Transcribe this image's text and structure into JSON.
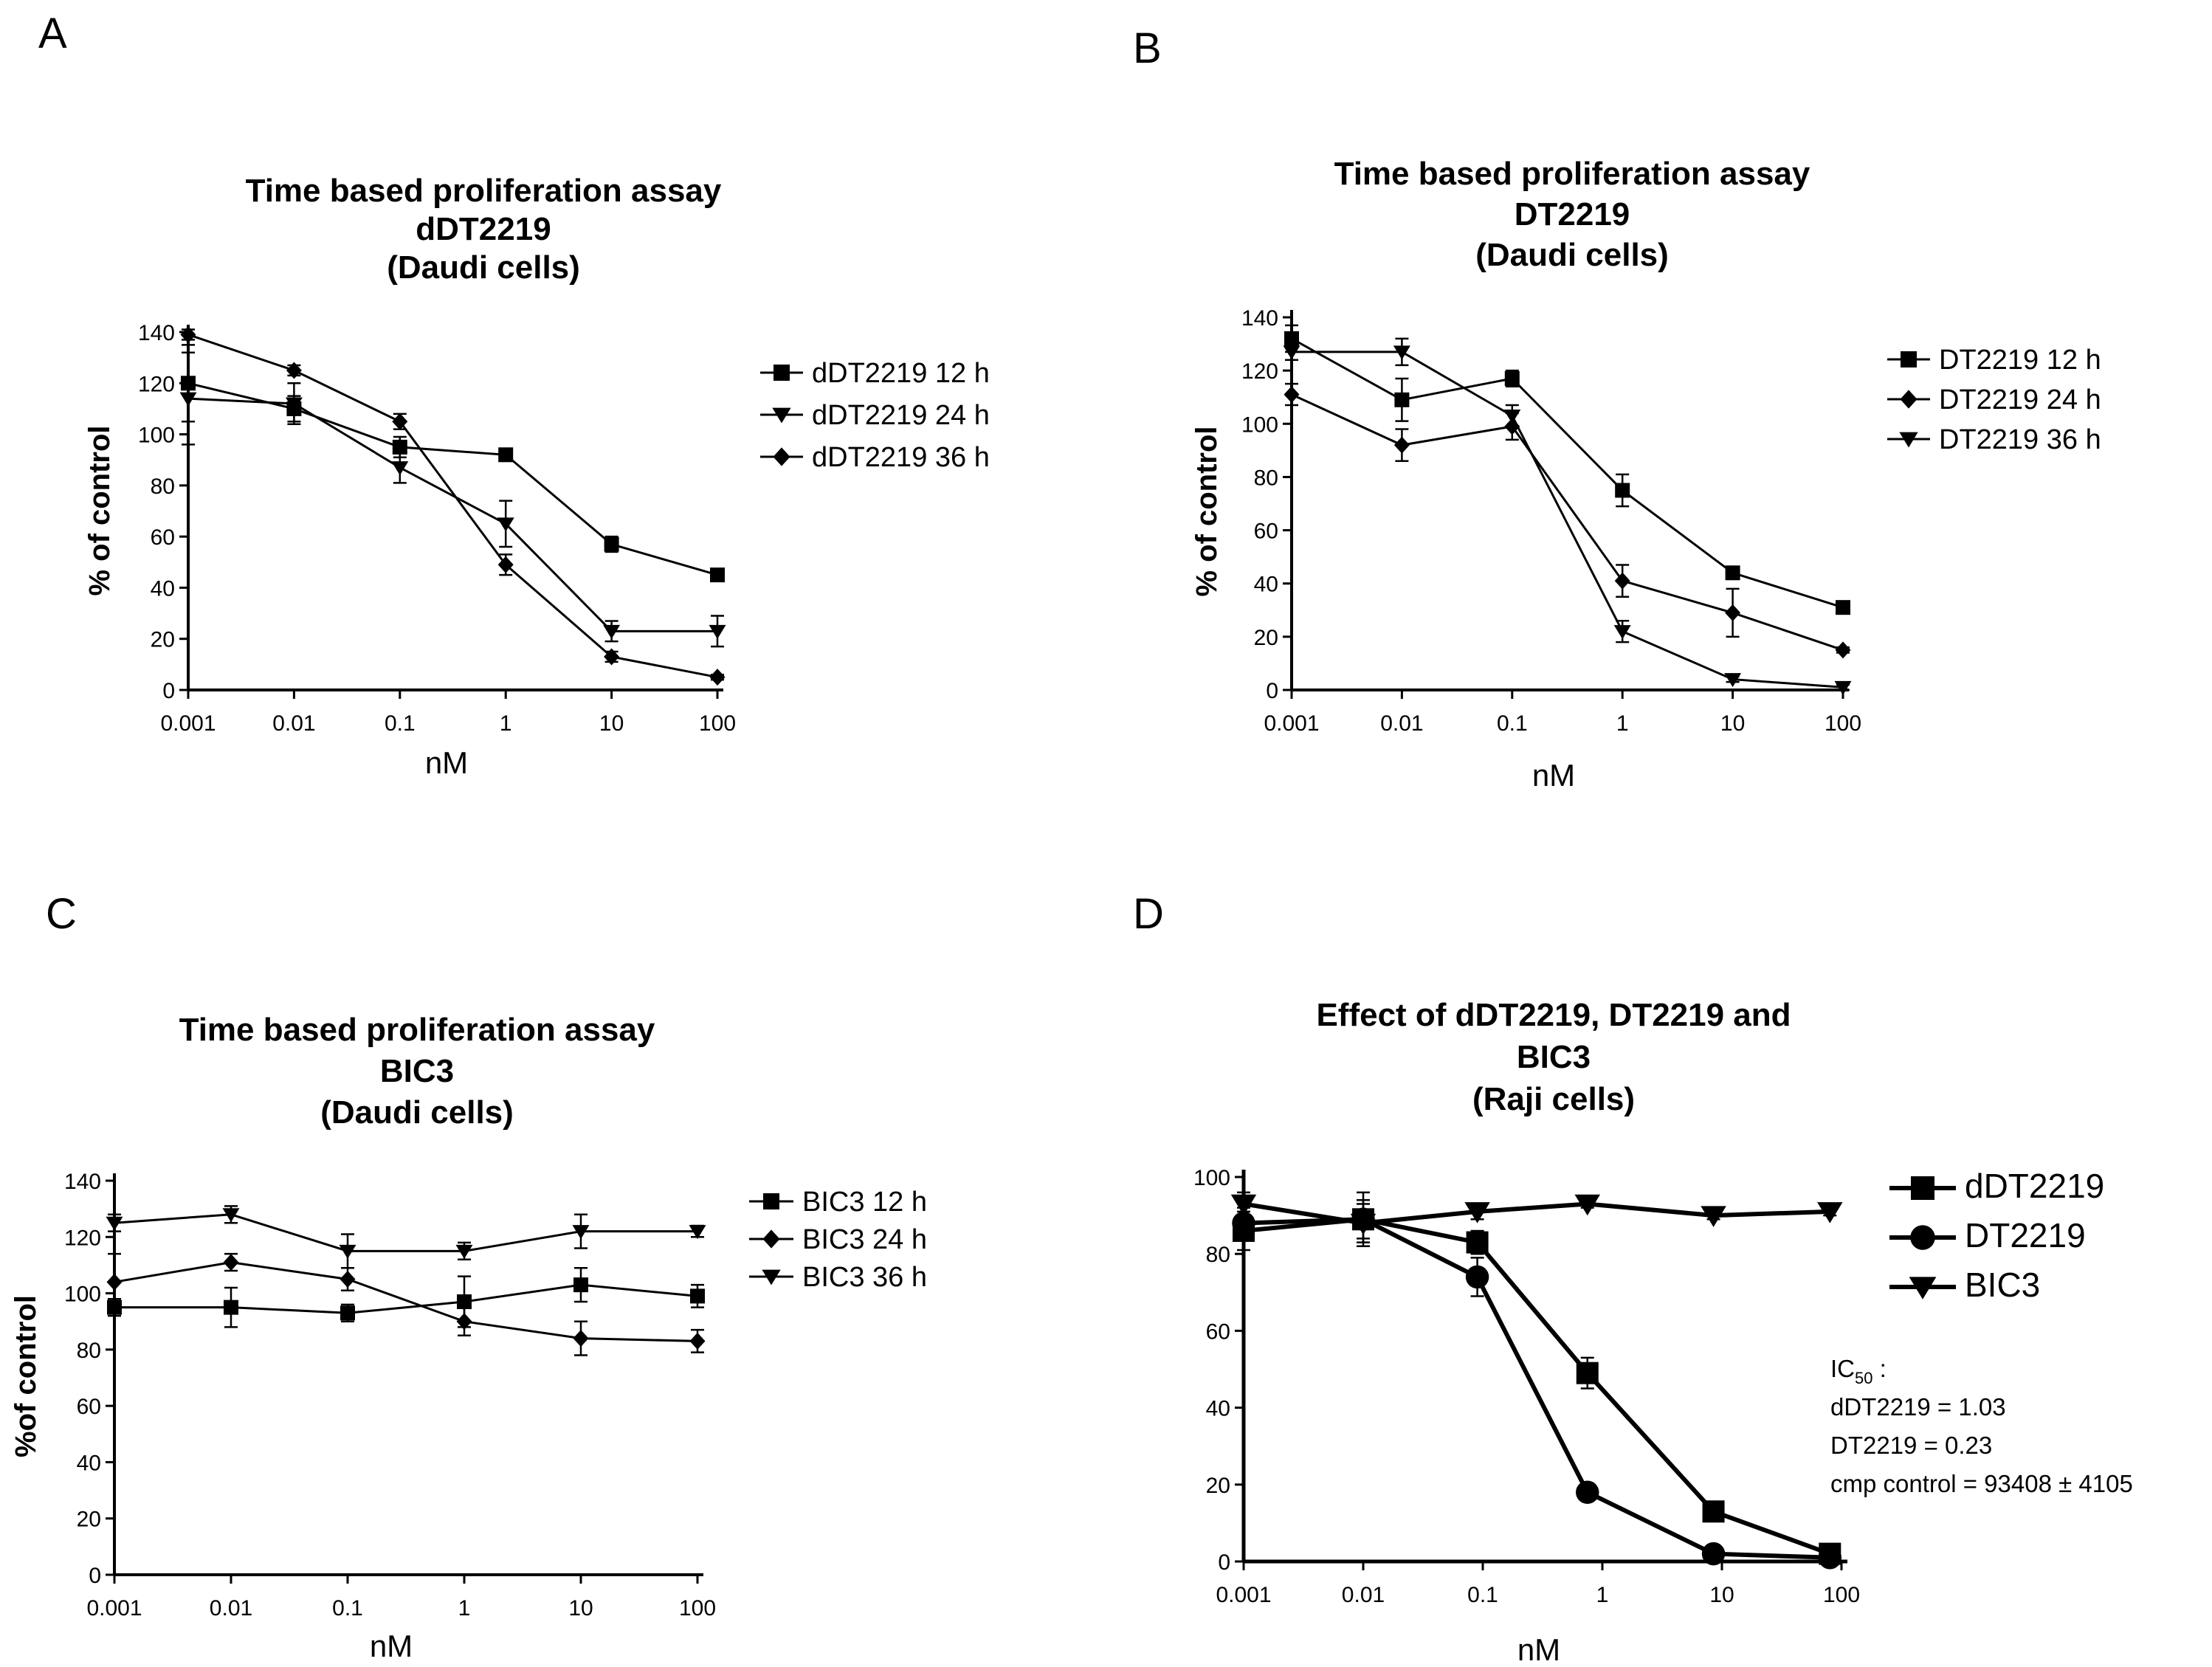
{
  "figure": {
    "panels": [
      {
        "letter": "A",
        "title_lines": [
          "Time based proliferation assay",
          "dDT2219",
          "(Daudi cells)"
        ]
      },
      {
        "letter": "B",
        "title_lines": [
          "Time based proliferation assay",
          "DT2219",
          "(Daudi cells)"
        ]
      },
      {
        "letter": "C",
        "title_lines": [
          "Time based proliferation assay",
          "BIC3",
          "(Daudi cells)"
        ]
      },
      {
        "letter": "D",
        "title_lines": [
          "Effect of dDT2219, DT2219 and",
          "BIC3",
          "(Raji cells)"
        ]
      }
    ],
    "ic50": {
      "label": "IC",
      "label_sub": "50",
      "label_suffix": ":",
      "lines": [
        "dDT2219 = 1.03",
        "DT2219 = 0.23",
        "cmp control = 93408 ± 4105"
      ]
    }
  },
  "chart_data": [
    {
      "type": "line",
      "title": "Time based proliferation assay dDT2219 (Daudi cells)",
      "xlabel": "nM",
      "ylabel": "% of control",
      "xscale": "log",
      "x": [
        0.001,
        0.01,
        0.1,
        1,
        10,
        100
      ],
      "xticks": [
        "0.001",
        "0.01",
        "0.1",
        "1",
        "10",
        "100"
      ],
      "yticks": [
        "0",
        "20",
        "40",
        "60",
        "80",
        "100",
        "120",
        "140"
      ],
      "ylim": [
        0,
        140
      ],
      "legend": "right",
      "series": [
        {
          "name": "dDT2219 12 h",
          "marker": "square",
          "values": [
            120,
            110,
            95,
            92,
            57,
            45
          ],
          "errors": [
            15,
            5,
            4,
            2,
            3,
            2
          ]
        },
        {
          "name": "dDT2219 24 h",
          "marker": "triangle-down",
          "values": [
            114,
            112,
            87,
            65,
            23,
            23
          ],
          "errors": [
            18,
            8,
            6,
            9,
            4,
            6
          ]
        },
        {
          "name": "dDT2219 36 h",
          "marker": "diamond",
          "values": [
            139,
            125,
            105,
            49,
            13,
            5
          ],
          "errors": [
            2,
            2,
            3,
            4,
            2,
            1
          ]
        }
      ]
    },
    {
      "type": "line",
      "title": "Time based proliferation assay DT2219 (Daudi cells)",
      "xlabel": "nM",
      "ylabel": "% of control",
      "xscale": "log",
      "x": [
        0.001,
        0.01,
        0.1,
        1,
        10,
        100
      ],
      "xticks": [
        "0.001",
        "0.01",
        "0.1",
        "1",
        "10",
        "100"
      ],
      "yticks": [
        "0",
        "20",
        "40",
        "60",
        "80",
        "100",
        "120",
        "140"
      ],
      "ylim": [
        0,
        140
      ],
      "legend": "right",
      "series": [
        {
          "name": "DT2219 12 h",
          "marker": "square",
          "values": [
            132,
            109,
            117,
            75,
            44,
            31
          ],
          "errors": [
            5,
            8,
            3,
            6,
            2,
            2
          ]
        },
        {
          "name": "DT2219 24 h",
          "marker": "diamond",
          "values": [
            111,
            92,
            99,
            41,
            29,
            15
          ],
          "errors": [
            4,
            6,
            5,
            6,
            9,
            1
          ]
        },
        {
          "name": "DT2219 36 h",
          "marker": "triangle-down",
          "values": [
            127,
            127,
            103,
            22,
            4,
            1
          ],
          "errors": [
            3,
            5,
            4,
            4,
            1,
            1
          ]
        }
      ]
    },
    {
      "type": "line",
      "title": "Time based proliferation assay BIC3 (Daudi cells)",
      "xlabel": "nM",
      "ylabel": "%of control",
      "xscale": "log",
      "x": [
        0.001,
        0.01,
        0.1,
        1,
        10,
        100
      ],
      "xticks": [
        "0.001",
        "0.01",
        "0.1",
        "1",
        "10",
        "100"
      ],
      "yticks": [
        "0",
        "20",
        "40",
        "60",
        "80",
        "100",
        "120",
        "140"
      ],
      "ylim": [
        0,
        140
      ],
      "legend": "right",
      "series": [
        {
          "name": "BIC3 12 h",
          "marker": "square",
          "values": [
            95,
            95,
            93,
            97,
            103,
            99
          ],
          "errors": [
            3,
            7,
            3,
            9,
            6,
            4
          ]
        },
        {
          "name": "BIC3 24 h",
          "marker": "diamond",
          "values": [
            104,
            111,
            105,
            90,
            84,
            83
          ],
          "errors": [
            10,
            3,
            4,
            5,
            6,
            4
          ]
        },
        {
          "name": "BIC3 36 h",
          "marker": "triangle-down",
          "values": [
            125,
            128,
            115,
            115,
            122,
            122
          ],
          "errors": [
            3,
            3,
            6,
            3,
            6,
            2
          ]
        }
      ]
    },
    {
      "type": "line",
      "title": "Effect of dDT2219, DT2219 and BIC3 (Raji cells)",
      "xlabel": "nM",
      "ylabel": "",
      "xscale": "log",
      "x": [
        0.001,
        0.01,
        0.1,
        1,
        10,
        100
      ],
      "xticks": [
        "0.001",
        "0.01",
        "0.1",
        "1",
        "10",
        "100"
      ],
      "yticks": [
        "0",
        "20",
        "40",
        "60",
        "80",
        "100"
      ],
      "ylim": [
        0,
        100
      ],
      "legend": "right",
      "series": [
        {
          "name": "dDT2219",
          "marker": "square",
          "x": [
            0.001,
            0.01,
            0.09,
            0.75,
            8.5,
            80
          ],
          "values": [
            86,
            89,
            83,
            49,
            13,
            2
          ],
          "errors": [
            5,
            5,
            3,
            4,
            2,
            1
          ]
        },
        {
          "name": "DT2219",
          "marker": "circle",
          "x": [
            0.001,
            0.01,
            0.09,
            0.75,
            8.5,
            80
          ],
          "values": [
            88,
            89,
            74,
            18,
            2,
            1
          ],
          "errors": [
            4,
            7,
            5,
            1,
            1,
            1
          ]
        },
        {
          "name": "BIC3",
          "marker": "triangle-down",
          "x": [
            0.001,
            0.01,
            0.09,
            0.75,
            8.5,
            80
          ],
          "values": [
            93,
            88,
            91,
            93,
            90,
            91
          ],
          "errors": [
            3,
            5,
            2,
            1,
            1,
            1
          ]
        }
      ]
    }
  ]
}
